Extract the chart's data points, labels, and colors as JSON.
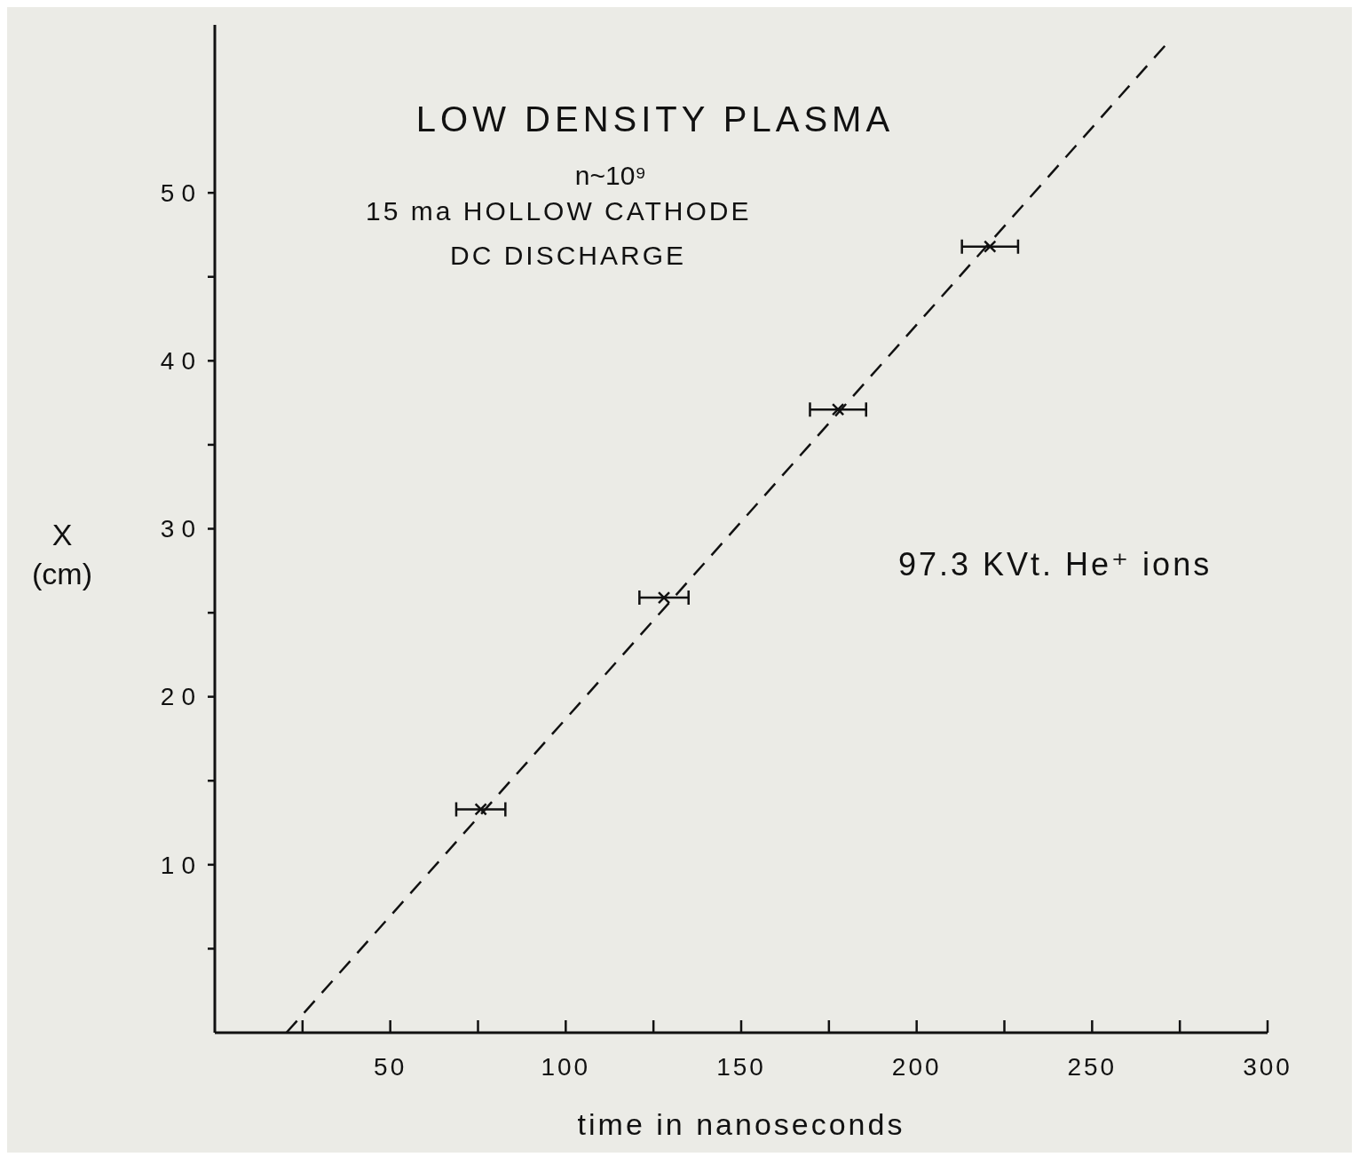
{
  "chart_data": {
    "type": "scatter",
    "title": "LOW DENSITY PLASMA",
    "subtitle": "n~10⁹",
    "xlabel": "time in nanoseconds",
    "ylabel": "X (cm)",
    "annotations": [
      "15 ma HOLLOW CATHODE",
      "DC DISCHARGE",
      "97.3 KVt. He⁺ ions"
    ],
    "xlim": [
      0,
      300
    ],
    "xticks": [
      {
        "value": 25,
        "label": null
      },
      50,
      {
        "value": 75,
        "label": null
      },
      100,
      {
        "value": 125,
        "label": null
      },
      150,
      {
        "value": 175,
        "label": null
      },
      200,
      {
        "value": 225,
        "label": null
      },
      250,
      {
        "value": 275,
        "label": null
      },
      300
    ],
    "ylim": [
      0,
      60
    ],
    "yticks": [
      {
        "value": 5,
        "label": null
      },
      10,
      {
        "value": 15,
        "label": null
      },
      20,
      {
        "value": 25,
        "label": null
      },
      30,
      {
        "value": 35,
        "label": null
      },
      40,
      {
        "value": 45,
        "label": null
      },
      50
    ],
    "grid": false,
    "series": [
      {
        "color": "#111111",
        "marker": "cross",
        "x": [
          75.8,
          128,
          177.6,
          220.9
        ],
        "values": [
          13.3,
          25.9,
          37.1,
          46.8
        ],
        "xerrors": [
          7,
          7,
          8,
          8
        ]
      },
      {
        "type": "line",
        "color": "#111111",
        "line_style": "dashed",
        "marker": "none",
        "x": [
          20.4,
          271.8
        ],
        "values": [
          0,
          59
        ]
      }
    ]
  }
}
